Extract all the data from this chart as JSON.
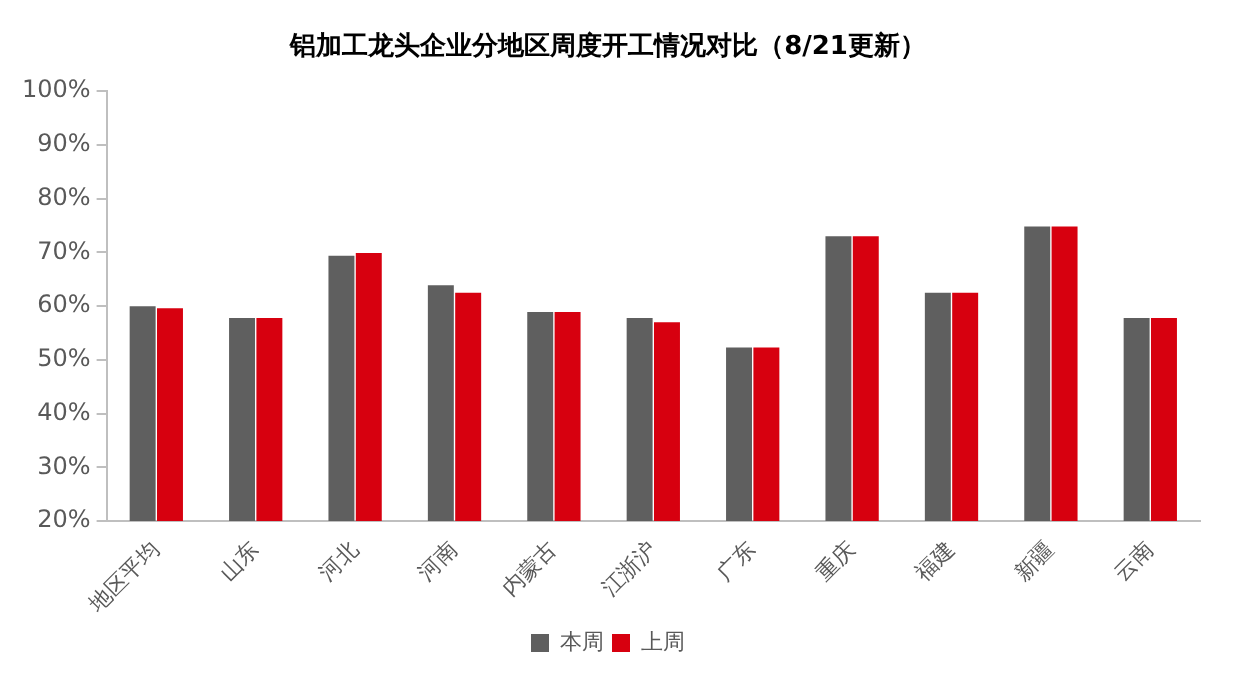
{
  "chart_data": {
    "type": "bar",
    "title": "铝加工龙头企业分地区周度开工情况对比（8/21更新）",
    "categories": [
      "地区平均",
      "山东",
      "河北",
      "河南",
      "内蒙古",
      "江浙沪",
      "广东",
      "重庆",
      "福建",
      "新疆",
      "云南"
    ],
    "series": [
      {
        "name": "本周",
        "color": "#5f5f5f",
        "values": [
          60.0,
          57.8,
          69.4,
          63.9,
          58.9,
          57.8,
          52.3,
          73.0,
          62.5,
          74.8,
          57.8
        ]
      },
      {
        "name": "上周",
        "color": "#d7000f",
        "values": [
          59.6,
          57.8,
          69.9,
          62.5,
          58.9,
          57.0,
          52.3,
          73.0,
          62.5,
          74.8,
          57.8
        ]
      }
    ],
    "ylim": [
      20,
      100
    ],
    "yticks": [
      {
        "value": 20,
        "label": "20%"
      },
      {
        "value": 30,
        "label": "30%"
      },
      {
        "value": 40,
        "label": "40%"
      },
      {
        "value": 50,
        "label": "50%"
      },
      {
        "value": 60,
        "label": "60%"
      },
      {
        "value": 70,
        "label": "70%"
      },
      {
        "value": 80,
        "label": "80%"
      },
      {
        "value": 90,
        "label": "90%"
      },
      {
        "value": 100,
        "label": "100%"
      }
    ],
    "grid": false,
    "legend": "bottom"
  }
}
